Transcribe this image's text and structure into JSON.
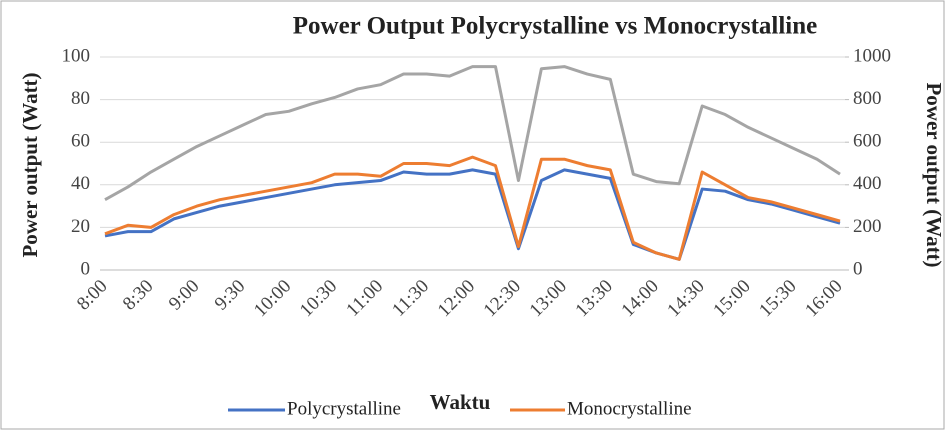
{
  "chart_data": {
    "type": "line",
    "title": "Power Output Polycrystalline vs Monocrystalline",
    "x_label": "Waktu",
    "y_label": "Power output (Watt)",
    "y2_label": "Power output (Watt)",
    "categories": [
      "8:00",
      null,
      "8:30",
      null,
      "9:00",
      null,
      "9:30",
      null,
      "10:00",
      null,
      "10:30",
      null,
      "11:00",
      null,
      "11:30",
      null,
      "12:00",
      null,
      "12:30",
      null,
      "13:00",
      null,
      "13:30",
      null,
      "14:00",
      null,
      "14:30",
      null,
      "15:00",
      null,
      "15:30",
      null,
      "16:00"
    ],
    "series": [
      {
        "name": "Polycrystalline",
        "color": "#4472c4",
        "values": [
          16,
          18,
          18,
          24,
          27,
          30,
          32,
          34,
          36,
          38,
          40,
          41,
          42,
          46,
          45,
          45,
          47,
          45,
          10,
          42,
          47,
          45,
          43,
          12,
          8,
          5,
          38,
          37,
          33,
          31,
          28,
          25,
          22
        ]
      },
      {
        "name": "Monocrystalline",
        "color": "#ed7d31",
        "values": [
          17,
          21,
          20,
          26,
          30,
          33,
          35,
          37,
          39,
          41,
          45,
          45,
          44,
          50,
          50,
          49,
          53,
          49,
          11,
          52,
          52,
          49,
          47,
          13,
          8,
          5,
          46,
          40,
          34,
          32,
          29,
          26,
          23
        ]
      },
      {
        "color": "#a5a5a5",
        "axis": "y2",
        "values": [
          330,
          390,
          460,
          520,
          580,
          630,
          680,
          730,
          745,
          780,
          810,
          850,
          870,
          920,
          920,
          910,
          955,
          955,
          420,
          945,
          955,
          920,
          895,
          450,
          415,
          405,
          770,
          730,
          670,
          620,
          570,
          520,
          450
        ]
      }
    ],
    "ylim": [
      0,
      100
    ],
    "yticks": [
      0,
      20,
      40,
      60,
      80,
      100
    ],
    "y2lim": [
      0,
      1000
    ],
    "y2ticks": [
      0,
      200,
      400,
      600,
      800,
      1000
    ],
    "grid": true,
    "legend": "bottom"
  }
}
